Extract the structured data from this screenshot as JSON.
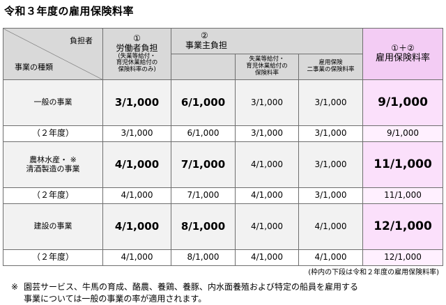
{
  "title": "令和３年度の雇用保険料率",
  "header": {
    "payer": "負担者",
    "business_type": "事業の種類",
    "worker_num": "①",
    "worker_label": "労働者負担",
    "worker_note_1": "(失業等給付・",
    "worker_note_2": "育児休業給付の",
    "worker_note_3": "保険料率のみ)",
    "employer_num": "②",
    "employer_label": "事業主負担",
    "unemp_1": "失業等給付・",
    "unemp_2": "育児休業給付の",
    "unemp_3": "保険料率",
    "two_1": "雇用保険",
    "two_2": "二事業の保険料率",
    "total_num": "①＋②",
    "total_label": "雇用保険料率"
  },
  "rows": [
    {
      "name_1": "一般の事業",
      "name_2": "",
      "worker": "3/1,000",
      "employer": "6/1,000",
      "unemp": "3/1,000",
      "two": "3/1,000",
      "total": "9/1,000",
      "prev_label": "（２年度）",
      "prev_worker": "3/1,000",
      "prev_employer": "6/1,000",
      "prev_unemp": "3/1,000",
      "prev_two": "3/1,000",
      "prev_total": "9/1,000"
    },
    {
      "name_1": "農林水産・ ※",
      "name_2": "清酒製造の事業",
      "worker": "4/1,000",
      "employer": "7/1,000",
      "unemp": "4/1,000",
      "two": "3/1,000",
      "total": "11/1,000",
      "prev_label": "（２年度）",
      "prev_worker": "4/1,000",
      "prev_employer": "7/1,000",
      "prev_unemp": "4/1,000",
      "prev_two": "3/1,000",
      "prev_total": "11/1,000"
    },
    {
      "name_1": "建設の事業",
      "name_2": "",
      "worker": "4/1,000",
      "employer": "8/1,000",
      "unemp": "4/1,000",
      "two": "4/1,000",
      "total": "12/1,000",
      "prev_label": "（２年度）",
      "prev_worker": "4/1,000",
      "prev_employer": "8/1,000",
      "prev_unemp": "4/1,000",
      "prev_two": "4/1,000",
      "prev_total": "12/1,000"
    }
  ],
  "note_right": "(枠内の下段は令和２年度の雇用保険料率)",
  "footnote_mark": "※",
  "footnote_1": "園芸サービス、牛馬の育成、酪農、養鶏、養豚、内水面養殖および特定の船員を雇用する",
  "footnote_2": "事業については一般の事業の率が適用されます。"
}
